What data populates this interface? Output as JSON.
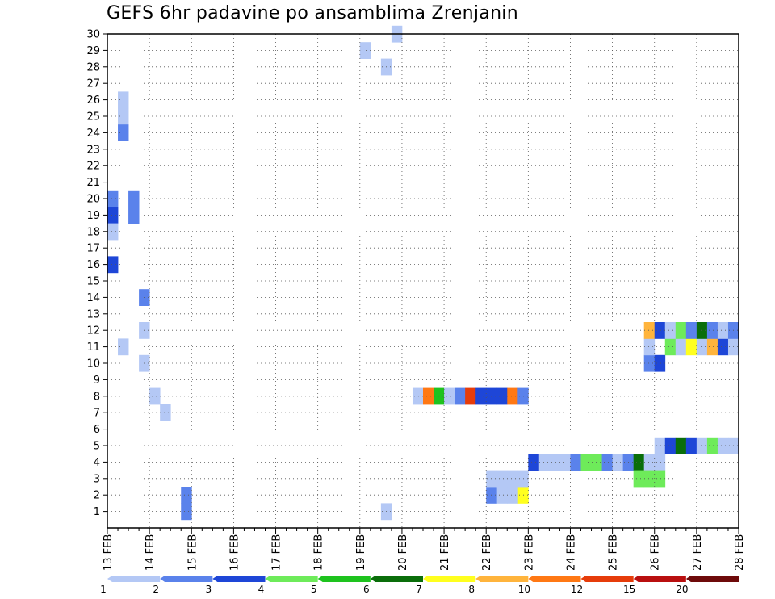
{
  "chart_data": {
    "type": "heatmap",
    "title": "GEFS 6hr padavine po ansamblima Zrenjanin",
    "xlabel": "",
    "ylabel": "",
    "x_ticks": [
      "13 FEB",
      "14 FEB",
      "15 FEB",
      "16 FEB",
      "17 FEB",
      "18 FEB",
      "19 FEB",
      "20 FEB",
      "21 FEB",
      "22 FEB",
      "23 FEB",
      "24 FEB",
      "25 FEB",
      "26 FEB",
      "27 FEB",
      "28 FEB"
    ],
    "y_ticks": [
      "1",
      "2",
      "3",
      "4",
      "5",
      "6",
      "7",
      "8",
      "9",
      "10",
      "11",
      "12",
      "13",
      "14",
      "15",
      "16",
      "17",
      "18",
      "19",
      "20",
      "21",
      "22",
      "23",
      "24",
      "25",
      "26",
      "27",
      "28",
      "29",
      "30"
    ],
    "x_range": [
      0,
      60
    ],
    "y_range": [
      0,
      30
    ],
    "colorbar": {
      "levels": [
        "1",
        "2",
        "3",
        "4",
        "5",
        "6",
        "7",
        "8",
        "10",
        "12",
        "15",
        "20"
      ],
      "colors": [
        "#b4c8f5",
        "#5a82eb",
        "#1e46d7",
        "#6eeb5a",
        "#1ec31e",
        "#0a6e0a",
        "#ffff1e",
        "#ffb43c",
        "#ff7814",
        "#e63c0a",
        "#b90f0f",
        "#6e0a0a"
      ]
    },
    "cells": [
      [
        26,
        1,
        1
      ],
      [
        25,
        1,
        1
      ],
      [
        24,
        1,
        2
      ],
      [
        20,
        2,
        2
      ],
      [
        19,
        2,
        2
      ],
      [
        14,
        3,
        2
      ],
      [
        12,
        3,
        1
      ],
      [
        10,
        3,
        1
      ],
      [
        8,
        4,
        1
      ],
      [
        7,
        5,
        1
      ],
      [
        2,
        7,
        2
      ],
      [
        1,
        7,
        2
      ],
      [
        20,
        0,
        2
      ],
      [
        19,
        0,
        3
      ],
      [
        18,
        0,
        1
      ],
      [
        16,
        0,
        3
      ],
      [
        11,
        1,
        1
      ],
      [
        1,
        26,
        1
      ],
      [
        29,
        24,
        1
      ],
      [
        28,
        26,
        1
      ],
      [
        30,
        27,
        1
      ],
      [
        8,
        29,
        1
      ],
      [
        8,
        30,
        9
      ],
      [
        8,
        31,
        5
      ],
      [
        8,
        32,
        1
      ],
      [
        8,
        33,
        2
      ],
      [
        8,
        34,
        10
      ],
      [
        8,
        35,
        3
      ],
      [
        8,
        36,
        3
      ],
      [
        8,
        37,
        3
      ],
      [
        8,
        38,
        9
      ],
      [
        8,
        39,
        2
      ],
      [
        2,
        39,
        7
      ],
      [
        2,
        38,
        1
      ],
      [
        2,
        37,
        1
      ],
      [
        2,
        36,
        2
      ],
      [
        3,
        39,
        1
      ],
      [
        3,
        38,
        1
      ],
      [
        3,
        37,
        1
      ],
      [
        3,
        36,
        1
      ],
      [
        4,
        41,
        1
      ],
      [
        4,
        40,
        3
      ],
      [
        4,
        42,
        1
      ],
      [
        4,
        43,
        1
      ],
      [
        4,
        44,
        2
      ],
      [
        4,
        45,
        4
      ],
      [
        4,
        46,
        4
      ],
      [
        4,
        47,
        2
      ],
      [
        4,
        48,
        1
      ],
      [
        4,
        49,
        2
      ],
      [
        4,
        50,
        6
      ],
      [
        4,
        51,
        1
      ],
      [
        4,
        52,
        1
      ],
      [
        3,
        50,
        4
      ],
      [
        3,
        51,
        4
      ],
      [
        3,
        52,
        4
      ],
      [
        5,
        52,
        1
      ],
      [
        5,
        53,
        3
      ],
      [
        5,
        54,
        6
      ],
      [
        5,
        55,
        3
      ],
      [
        5,
        56,
        1
      ],
      [
        5,
        57,
        4
      ],
      [
        5,
        58,
        1
      ],
      [
        5,
        59,
        1
      ],
      [
        10,
        51,
        2
      ],
      [
        10,
        52,
        3
      ],
      [
        11,
        51,
        1
      ],
      [
        11,
        53,
        4
      ],
      [
        11,
        54,
        1
      ],
      [
        11,
        55,
        7
      ],
      [
        11,
        56,
        1
      ],
      [
        11,
        57,
        8
      ],
      [
        11,
        58,
        3
      ],
      [
        11,
        59,
        1
      ],
      [
        12,
        51,
        8
      ],
      [
        12,
        52,
        3
      ],
      [
        12,
        53,
        1
      ],
      [
        12,
        54,
        4
      ],
      [
        12,
        55,
        2
      ],
      [
        12,
        56,
        6
      ],
      [
        12,
        57,
        2
      ],
      [
        12,
        58,
        1
      ],
      [
        12,
        59,
        2
      ]
    ]
  }
}
